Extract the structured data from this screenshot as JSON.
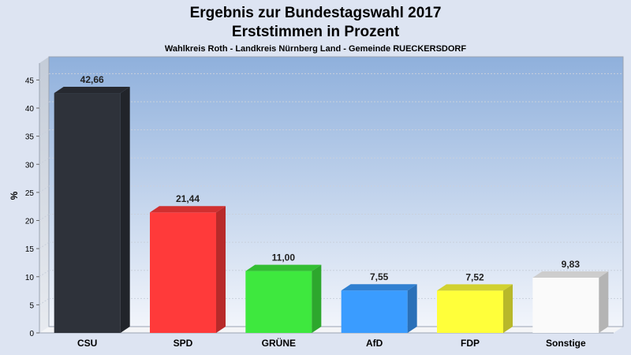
{
  "chart_data": {
    "type": "bar",
    "title": "Ergebnis zur Bundestagswahl 2017",
    "subtitle": "Erststimmen in Prozent",
    "caption": "Wahlkreis Roth - Landkreis Nürnberg Land - Gemeinde RUECKERSDORF",
    "ylabel": "%",
    "xlabel": "",
    "ylim": [
      0,
      48
    ],
    "yticks": [
      0,
      5,
      10,
      15,
      20,
      25,
      30,
      35,
      40,
      45
    ],
    "grid": true,
    "legend": "none",
    "categories": [
      "CSU",
      "SPD",
      "GRÜNE",
      "AfD",
      "FDP",
      "Sonstige"
    ],
    "values": [
      42.66,
      21.44,
      11.0,
      7.55,
      7.52,
      9.83
    ],
    "value_labels": [
      "42,66",
      "21,44",
      "11,00",
      "7,55",
      "7,52",
      "9,83"
    ],
    "colors": [
      "#2e323a",
      "#ff3a3a",
      "#3ee83e",
      "#3a9cff",
      "#ffff3a",
      "#fafafa"
    ]
  }
}
